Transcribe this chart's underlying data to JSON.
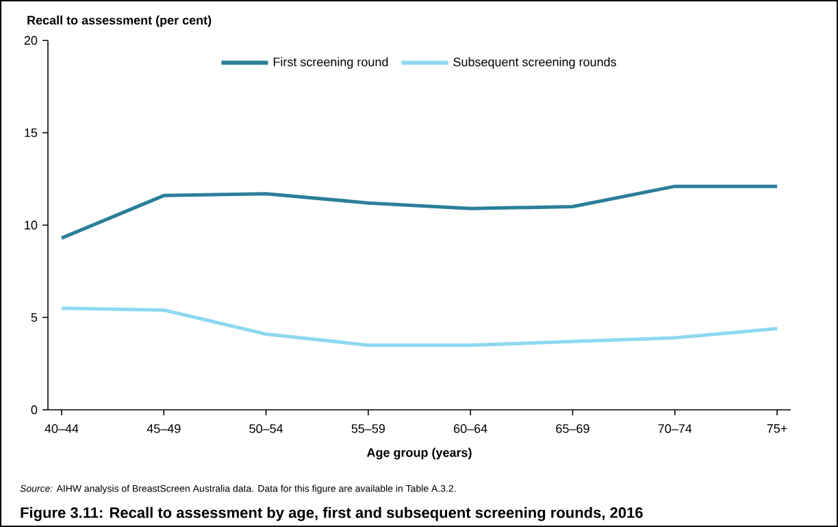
{
  "chart_data": {
    "type": "line",
    "title": "Figure 3.11: Recall to assessment by age, first and subsequent screening rounds, 2016",
    "ylabel": "Recall to assessment (per cent)",
    "xlabel": "Age group (years)",
    "annotations": [
      "*Source:* AIHW analysis of BreastScreen Australia data. Data for this figure are available in Table A.3.2."
    ],
    "categories": [
      "40–44",
      "45–49",
      "50–54",
      "55–59",
      "60–64",
      "65–69",
      "70–74",
      "75+"
    ],
    "series": [
      {
        "name": "First screening round",
        "color": "#2a7f99",
        "values": [
          9.3,
          11.6,
          11.7,
          11.2,
          10.9,
          11.0,
          12.1,
          12.1
        ]
      },
      {
        "name": "Subsequent screening rounds",
        "color": "#8dd8f2",
        "values": [
          5.5,
          5.4,
          4.1,
          3.5,
          3.5,
          3.7,
          3.9,
          4.4
        ]
      }
    ],
    "ylim": [
      0,
      20
    ],
    "yticks": [
      0,
      5,
      10,
      15,
      20
    ],
    "grid": false,
    "legend": "top",
    "marker": "none",
    "line_style": "solid"
  }
}
